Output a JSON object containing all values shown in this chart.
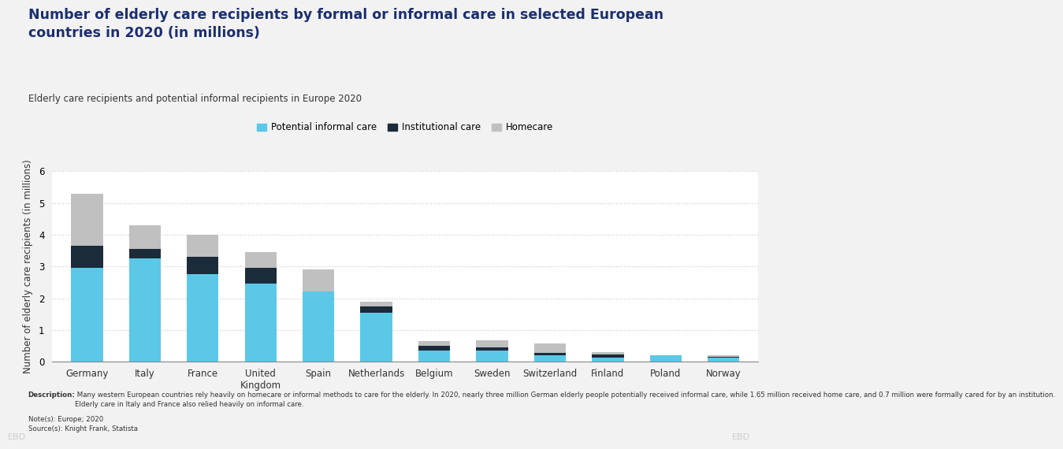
{
  "title": "Number of elderly care recipients by formal or informal care in selected European\ncountries in 2020 (in millions)",
  "subtitle": "Elderly care recipients and potential informal recipients in Europe 2020",
  "ylabel": "Number of elderly care recipients (in millions)",
  "categories": [
    "Germany",
    "Italy",
    "France",
    "United\nKingdom",
    "Spain",
    "Netherlands",
    "Belgium",
    "Sweden",
    "Switzerland",
    "Finland",
    "Poland",
    "Norway"
  ],
  "potential_informal": [
    2.95,
    3.25,
    2.75,
    2.45,
    2.2,
    1.55,
    0.35,
    0.35,
    0.2,
    0.13,
    0.2,
    0.13
  ],
  "institutional": [
    0.7,
    0.3,
    0.55,
    0.5,
    0.0,
    0.2,
    0.15,
    0.1,
    0.08,
    0.1,
    0.0,
    0.02
  ],
  "homecare": [
    1.65,
    0.75,
    0.7,
    0.5,
    0.7,
    0.15,
    0.15,
    0.22,
    0.3,
    0.07,
    0.0,
    0.05
  ],
  "color_informal": "#5BC8E8",
  "color_institutional": "#1C2B3A",
  "color_homecare": "#C0C0C0",
  "legend_labels": [
    "Potential informal care",
    "Institutional care",
    "Homecare"
  ],
  "ylim": [
    0,
    6.0
  ],
  "yticks": [
    0.0,
    1.0,
    2.0,
    3.0,
    4.0,
    5.0,
    6.0
  ],
  "description_bold": "Description:",
  "description_text": " Many western European countries rely heavily on homecare or informal methods to care for the elderly. In 2020, nearly three million German elderly people potentially received informal care, while 1.65 million received home care, and 0.7 million were formally cared for by an institution.\nElderly care in Italy and France also relied heavily on informal care.",
  "notes": "Note(s): Europe; 2020\nSource(s): Knight Frank, Statista",
  "bg_color": "#F2F2F2",
  "plot_bg_color": "#FFFFFF",
  "title_color": "#1B2F6E",
  "subtitle_color": "#333333",
  "grid_color": "#CCCCCC",
  "bar_width": 0.55
}
